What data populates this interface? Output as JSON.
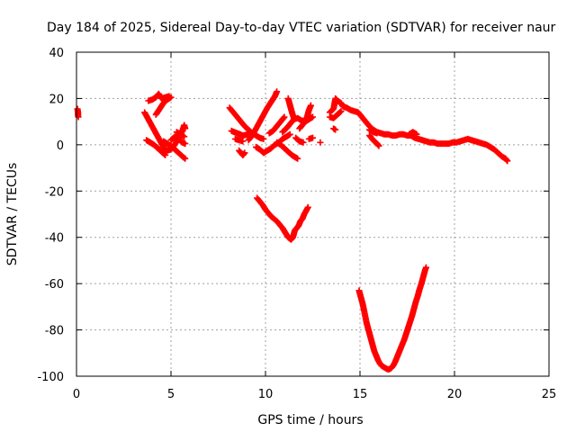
{
  "chart_data": {
    "type": "scatter",
    "title": "Day 184 of 2025, Sidereal Day-to-day VTEC variation (SDTVAR) for receiver naur",
    "xlabel": "GPS time / hours",
    "ylabel": "SDTVAR / TECUs",
    "xlim": [
      0,
      25
    ],
    "ylim": [
      -100,
      40
    ],
    "xticks": [
      0,
      5,
      10,
      15,
      20,
      25
    ],
    "yticks": [
      -100,
      -80,
      -60,
      -40,
      -20,
      0,
      20,
      40
    ],
    "grid": true,
    "marker": "plus",
    "color": "#ff0000",
    "series": [
      {
        "segments": [
          [
            [
              0.05,
              15.5
            ],
            [
              0.08,
              14.0
            ],
            [
              0.08,
              12.5
            ],
            [
              0.1,
              12.0
            ]
          ],
          [
            [
              3.8,
              19.0
            ],
            [
              4.0,
              19.5
            ],
            [
              4.2,
              20.5
            ],
            [
              4.35,
              22.0
            ],
            [
              4.5,
              20.0
            ],
            [
              4.7,
              20.5
            ],
            [
              4.9,
              21.0
            ]
          ],
          [
            [
              3.6,
              14.0
            ],
            [
              3.8,
              11.0
            ],
            [
              4.0,
              8.0
            ],
            [
              4.2,
              5.0
            ],
            [
              4.4,
              2.0
            ],
            [
              4.6,
              -1.0
            ],
            [
              4.8,
              -2.5
            ],
            [
              5.0,
              -2.0
            ],
            [
              5.2,
              0.0
            ],
            [
              5.4,
              3.0
            ],
            [
              5.6,
              6.0
            ],
            [
              5.7,
              8.5
            ],
            [
              5.75,
              7.0
            ]
          ],
          [
            [
              3.7,
              2.0
            ],
            [
              3.9,
              1.0
            ],
            [
              4.1,
              0.0
            ],
            [
              4.3,
              -1.5
            ],
            [
              4.5,
              -3.0
            ],
            [
              4.7,
              -4.5
            ]
          ],
          [
            [
              4.2,
              13.0
            ],
            [
              4.4,
              15.5
            ],
            [
              4.6,
              18.0
            ],
            [
              4.8,
              19.5
            ],
            [
              5.0,
              20.5
            ]
          ],
          [
            [
              5.0,
              2.0
            ],
            [
              5.2,
              3.5
            ],
            [
              5.4,
              2.5
            ],
            [
              5.6,
              1.0
            ],
            [
              5.75,
              0.5
            ]
          ],
          [
            [
              4.6,
              1.5
            ],
            [
              4.8,
              0.5
            ],
            [
              5.0,
              -0.5
            ],
            [
              5.2,
              -2.0
            ],
            [
              5.4,
              -3.5
            ],
            [
              5.6,
              -5.0
            ],
            [
              5.75,
              -6.0
            ]
          ],
          [
            [
              5.3,
              5.5
            ],
            [
              5.5,
              4.5
            ],
            [
              5.7,
              3.5
            ]
          ],
          [
            [
              8.1,
              16.0
            ],
            [
              8.3,
              14.0
            ],
            [
              8.5,
              12.0
            ],
            [
              8.7,
              10.0
            ],
            [
              8.9,
              8.0
            ],
            [
              9.1,
              6.5
            ],
            [
              9.3,
              5.0
            ],
            [
              9.5,
              4.0
            ],
            [
              9.7,
              3.0
            ],
            [
              9.9,
              2.5
            ]
          ],
          [
            [
              8.2,
              6.0
            ],
            [
              8.5,
              5.0
            ],
            [
              8.8,
              4.0
            ],
            [
              9.1,
              4.5
            ]
          ],
          [
            [
              8.4,
              2.5
            ],
            [
              8.6,
              2.0
            ],
            [
              8.8,
              1.5
            ]
          ],
          [
            [
              8.6,
              -2.5
            ],
            [
              8.8,
              -4.5
            ],
            [
              8.9,
              -3.5
            ]
          ],
          [
            [
              9.1,
              2.0
            ],
            [
              9.3,
              4.0
            ],
            [
              9.5,
              7.0
            ],
            [
              9.7,
              10.0
            ],
            [
              9.9,
              13.0
            ],
            [
              10.1,
              16.0
            ],
            [
              10.3,
              18.5
            ],
            [
              10.5,
              21.0
            ],
            [
              10.6,
              23.0
            ]
          ],
          [
            [
              9.5,
              -1.0
            ],
            [
              9.7,
              -2.0
            ],
            [
              9.9,
              -3.5
            ],
            [
              10.1,
              -2.5
            ],
            [
              10.3,
              -1.5
            ],
            [
              10.5,
              0.0
            ],
            [
              10.7,
              1.0
            ],
            [
              10.9,
              2.5
            ],
            [
              11.1,
              3.5
            ],
            [
              11.3,
              4.5
            ]
          ],
          [
            [
              10.2,
              5.0
            ],
            [
              10.4,
              6.0
            ],
            [
              10.6,
              8.0
            ],
            [
              10.8,
              10.0
            ],
            [
              11.0,
              12.0
            ]
          ],
          [
            [
              10.6,
              1.0
            ],
            [
              10.8,
              0.0
            ],
            [
              11.0,
              -1.5
            ],
            [
              11.2,
              -3.0
            ],
            [
              11.4,
              -4.5
            ],
            [
              11.6,
              -5.5
            ],
            [
              11.7,
              -6.0
            ]
          ],
          [
            [
              10.9,
              5.5
            ],
            [
              11.1,
              7.0
            ],
            [
              11.3,
              9.0
            ],
            [
              11.5,
              11.0
            ],
            [
              11.7,
              11.5
            ],
            [
              11.9,
              10.5
            ],
            [
              12.1,
              10.0
            ],
            [
              12.3,
              11.0
            ],
            [
              12.5,
              12.0
            ]
          ],
          [
            [
              11.2,
              20.0
            ],
            [
              11.3,
              17.0
            ],
            [
              11.4,
              14.0
            ],
            [
              11.5,
              11.5
            ]
          ],
          [
            [
              11.8,
              7.0
            ],
            [
              12.0,
              9.0
            ],
            [
              12.2,
              12.0
            ],
            [
              12.3,
              15.0
            ],
            [
              12.4,
              17.0
            ]
          ],
          [
            [
              11.6,
              3.0
            ],
            [
              11.8,
              1.5
            ],
            [
              12.0,
              1.0
            ]
          ],
          [
            [
              12.3,
              2.5
            ],
            [
              12.5,
              3.0
            ]
          ],
          [
            [
              12.9,
              1.0
            ]
          ],
          [
            [
              9.55,
              -23.0
            ],
            [
              9.7,
              -24.5
            ],
            [
              9.85,
              -26.0
            ],
            [
              10.0,
              -28.0
            ],
            [
              10.15,
              -29.5
            ],
            [
              10.3,
              -31.0
            ],
            [
              10.45,
              -32.0
            ],
            [
              10.6,
              -33.0
            ],
            [
              10.75,
              -34.5
            ],
            [
              10.9,
              -36.0
            ],
            [
              11.05,
              -38.0
            ],
            [
              11.2,
              -40.0
            ],
            [
              11.35,
              -41.0
            ],
            [
              11.45,
              -40.0
            ],
            [
              11.55,
              -37.0
            ],
            [
              11.65,
              -36.0
            ],
            [
              11.75,
              -35.0
            ],
            [
              11.85,
              -33.0
            ],
            [
              11.95,
              -32.0
            ],
            [
              12.05,
              -30.0
            ],
            [
              12.15,
              -28.5
            ],
            [
              12.25,
              -27.0
            ]
          ],
          [
            [
              13.4,
              14.0
            ],
            [
              13.6,
              15.5
            ],
            [
              13.7,
              20.0
            ],
            [
              13.8,
              19.0
            ],
            [
              14.0,
              18.0
            ],
            [
              14.1,
              16.5
            ],
            [
              14.3,
              16.0
            ],
            [
              14.5,
              15.0
            ],
            [
              14.7,
              14.5
            ],
            [
              14.9,
              14.0
            ],
            [
              15.1,
              12.0
            ],
            [
              15.3,
              10.0
            ],
            [
              15.5,
              8.0
            ],
            [
              15.7,
              6.5
            ],
            [
              15.9,
              5.5
            ],
            [
              16.1,
              5.0
            ],
            [
              16.3,
              4.5
            ],
            [
              16.5,
              4.5
            ],
            [
              16.7,
              4.0
            ],
            [
              16.9,
              4.0
            ],
            [
              17.1,
              4.5
            ],
            [
              17.3,
              4.5
            ],
            [
              17.5,
              4.0
            ],
            [
              17.7,
              4.0
            ],
            [
              17.9,
              3.0
            ],
            [
              18.1,
              2.5
            ],
            [
              18.3,
              2.0
            ],
            [
              18.5,
              1.5
            ],
            [
              18.7,
              1.0
            ],
            [
              18.9,
              1.0
            ],
            [
              19.1,
              0.5
            ],
            [
              19.3,
              0.5
            ],
            [
              19.5,
              0.5
            ],
            [
              19.7,
              0.5
            ],
            [
              19.9,
              1.0
            ],
            [
              20.1,
              1.0
            ],
            [
              20.3,
              1.5
            ],
            [
              20.5,
              2.0
            ],
            [
              20.7,
              2.5
            ],
            [
              20.9,
              2.0
            ],
            [
              21.1,
              1.5
            ],
            [
              21.3,
              1.0
            ],
            [
              21.5,
              0.5
            ],
            [
              21.7,
              0.0
            ],
            [
              21.9,
              -1.0
            ],
            [
              22.1,
              -2.0
            ],
            [
              22.3,
              -3.5
            ],
            [
              22.5,
              -5.0
            ],
            [
              22.7,
              -6.0
            ],
            [
              22.8,
              -7.0
            ]
          ],
          [
            [
              13.4,
              12.0
            ],
            [
              13.6,
              11.5
            ],
            [
              13.8,
              13.0
            ],
            [
              14.0,
              14.5
            ]
          ],
          [
            [
              13.6,
              7.0
            ],
            [
              13.7,
              6.5
            ]
          ],
          [
            [
              15.5,
              4.0
            ],
            [
              15.7,
              2.0
            ],
            [
              15.9,
              0.5
            ],
            [
              16.0,
              -0.5
            ]
          ],
          [
            [
              15.5,
              6.5
            ],
            [
              15.7,
              5.5
            ],
            [
              15.9,
              5.0
            ]
          ],
          [
            [
              17.6,
              4.5
            ],
            [
              17.8,
              5.5
            ],
            [
              18.0,
              4.5
            ]
          ],
          [
            [
              14.95,
              -63.0
            ],
            [
              15.05,
              -66.0
            ],
            [
              15.15,
              -69.0
            ],
            [
              15.25,
              -73.0
            ],
            [
              15.35,
              -77.0
            ],
            [
              15.45,
              -80.0
            ],
            [
              15.55,
              -83.0
            ],
            [
              15.65,
              -86.0
            ],
            [
              15.75,
              -89.0
            ],
            [
              15.85,
              -91.0
            ],
            [
              15.95,
              -93.0
            ],
            [
              16.05,
              -94.5
            ],
            [
              16.15,
              -95.5
            ],
            [
              16.25,
              -96.0
            ],
            [
              16.35,
              -96.5
            ],
            [
              16.45,
              -97.0
            ],
            [
              16.55,
              -97.0
            ],
            [
              16.65,
              -96.5
            ],
            [
              16.75,
              -95.5
            ],
            [
              16.85,
              -94.0
            ],
            [
              16.95,
              -92.0
            ],
            [
              17.05,
              -90.0
            ],
            [
              17.15,
              -88.0
            ],
            [
              17.25,
              -86.0
            ],
            [
              17.35,
              -84.0
            ],
            [
              17.45,
              -81.5
            ],
            [
              17.55,
              -79.0
            ],
            [
              17.65,
              -76.5
            ],
            [
              17.75,
              -74.0
            ],
            [
              17.85,
              -71.0
            ],
            [
              17.95,
              -68.0
            ],
            [
              18.05,
              -65.5
            ],
            [
              18.15,
              -62.5
            ],
            [
              18.25,
              -60.0
            ],
            [
              18.35,
              -57.0
            ],
            [
              18.45,
              -54.0
            ],
            [
              18.5,
              -53.0
            ]
          ]
        ]
      }
    ]
  }
}
